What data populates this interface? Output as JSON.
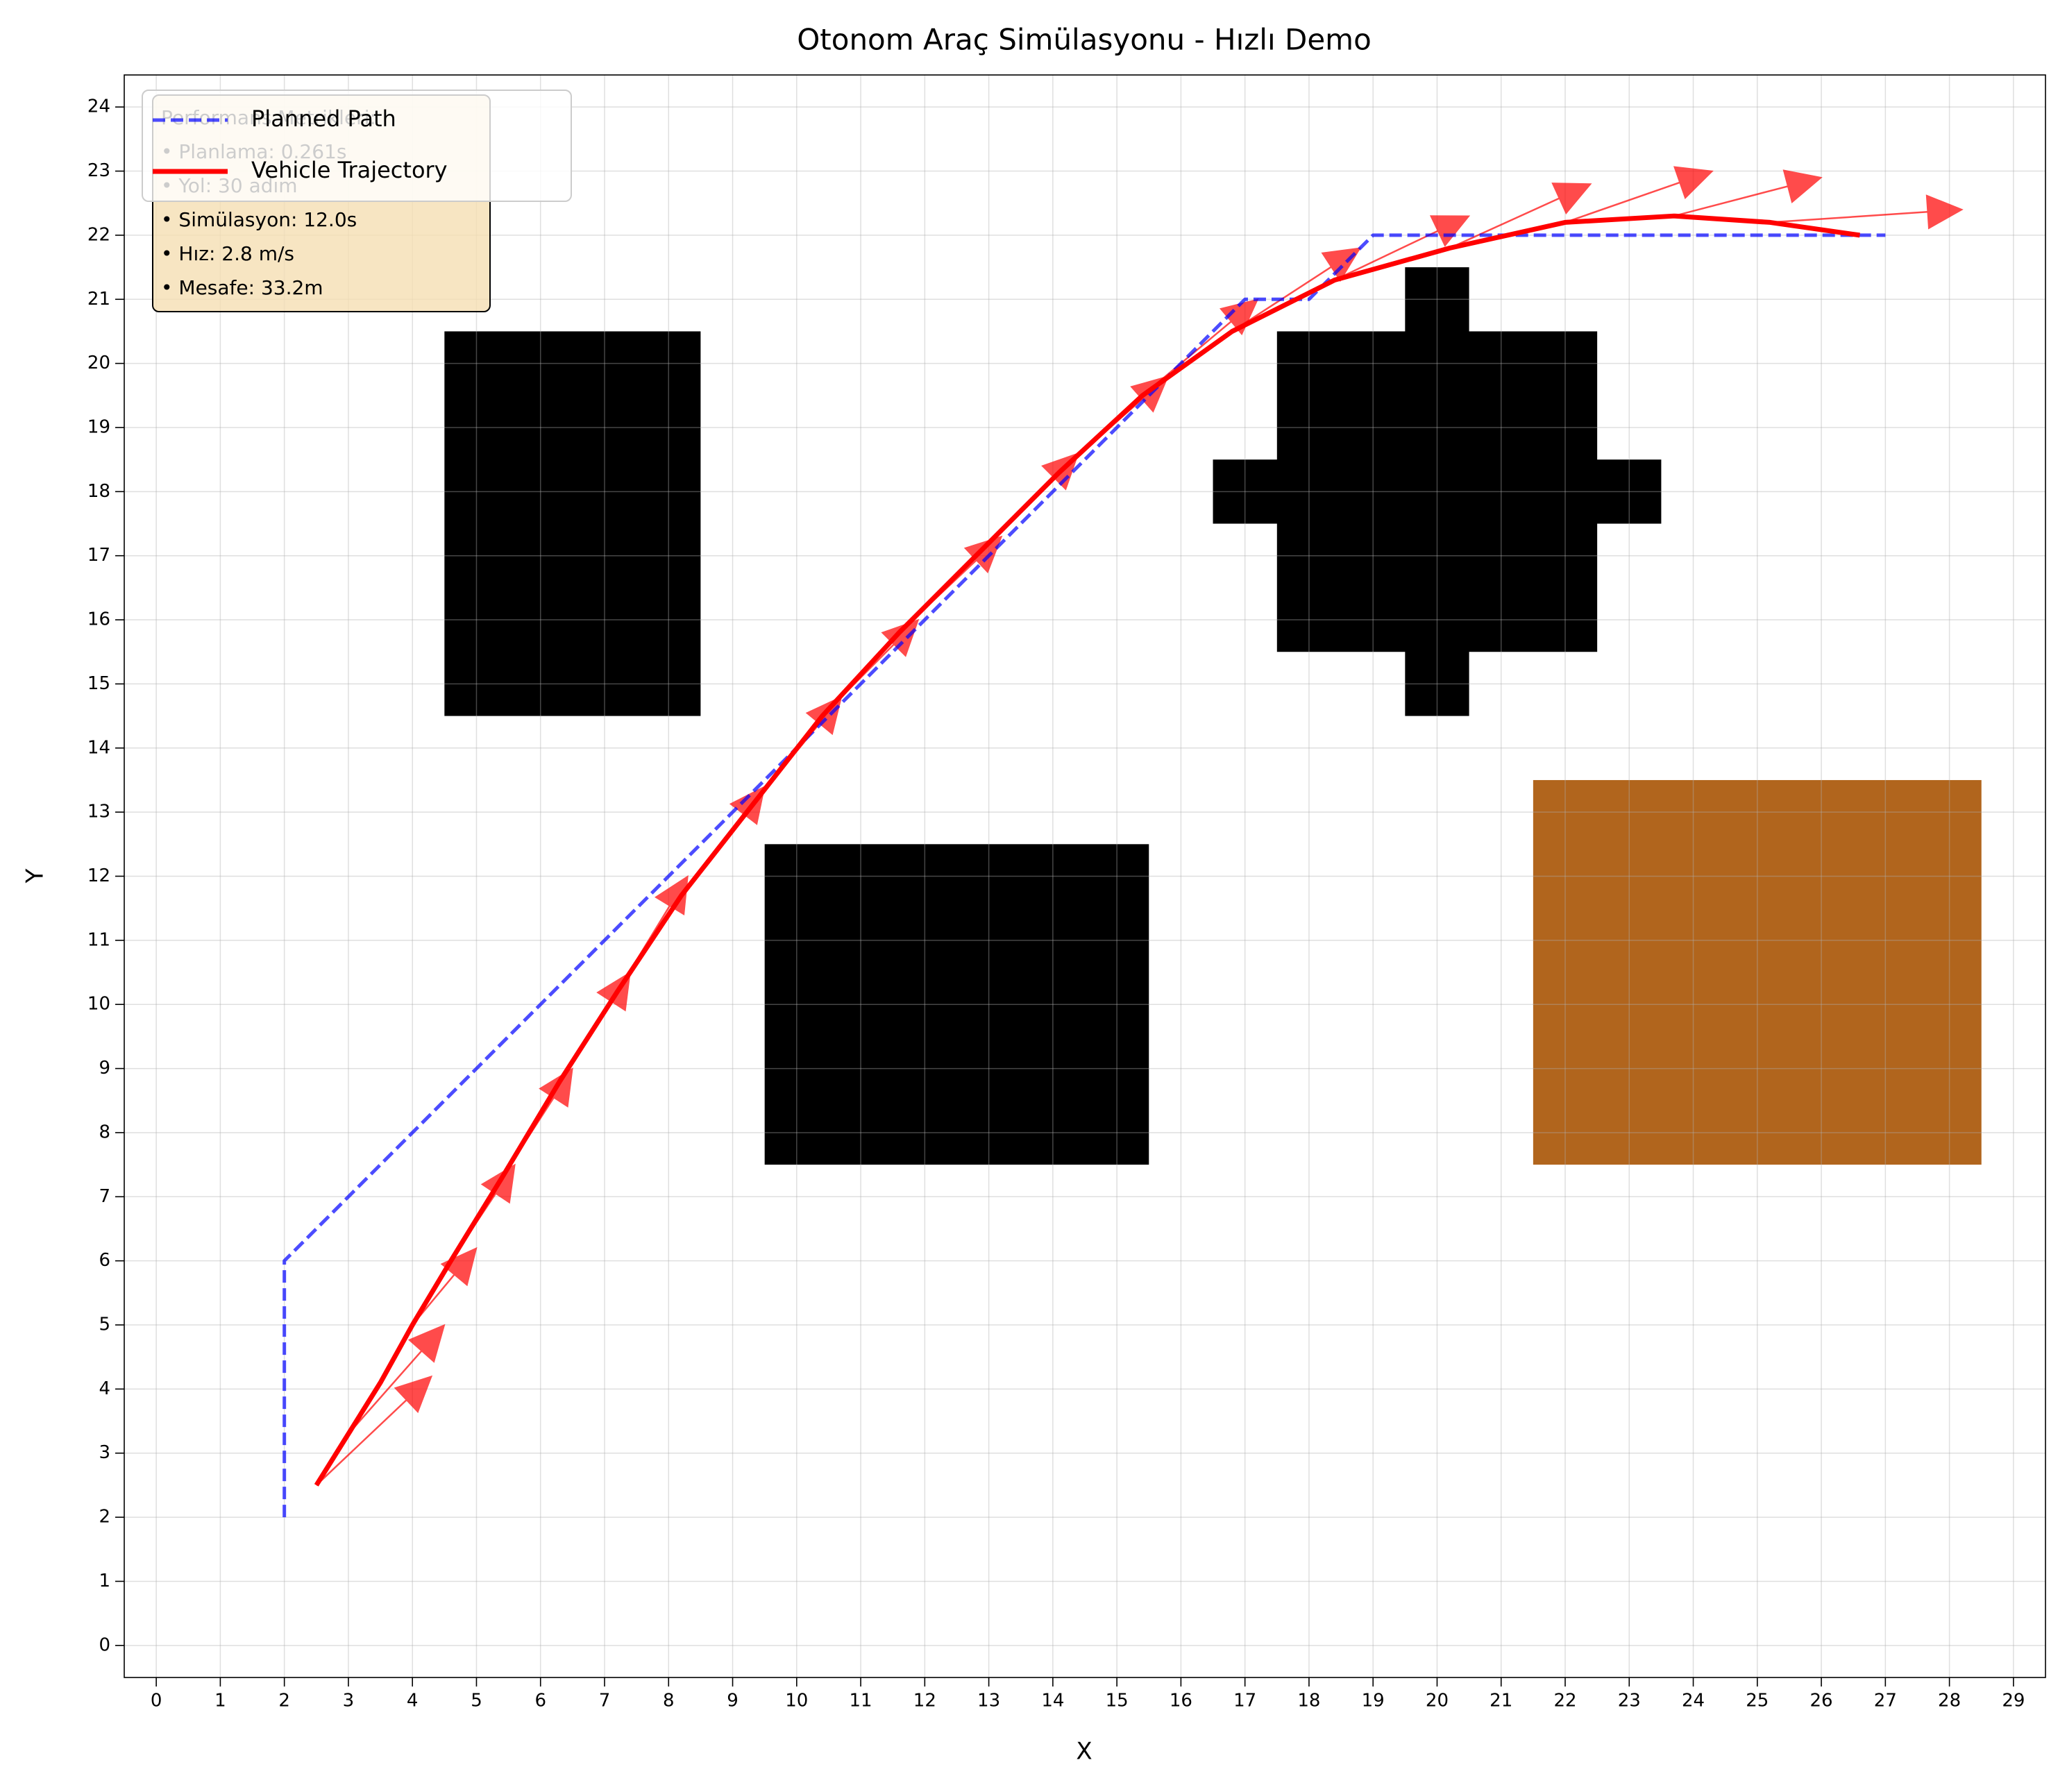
{
  "chart_data": {
    "type": "simulation",
    "title": "Otonom Araç Simülasyonu - Hızlı Demo",
    "xlabel": "X",
    "ylabel": "Y",
    "xlim": [
      -0.5,
      29.5
    ],
    "ylim": [
      -0.5,
      24.5
    ],
    "xticks": [
      0,
      1,
      2,
      3,
      4,
      5,
      6,
      7,
      8,
      9,
      10,
      11,
      12,
      13,
      14,
      15,
      16,
      17,
      18,
      19,
      20,
      21,
      22,
      23,
      24,
      25,
      26,
      27,
      28,
      29
    ],
    "yticks": [
      0,
      1,
      2,
      3,
      4,
      5,
      6,
      7,
      8,
      9,
      10,
      11,
      12,
      13,
      14,
      15,
      16,
      17,
      18,
      19,
      20,
      21,
      22,
      23,
      24
    ],
    "grid": true,
    "legend": "upper left",
    "obstacles": [
      {
        "x0": 4.5,
        "x1": 8.5,
        "y0": 14.5,
        "y1": 20.5,
        "color": "#000000"
      },
      {
        "x0": 9.5,
        "x1": 15.5,
        "y0": 7.5,
        "y1": 12.5,
        "color": "#000000"
      },
      {
        "x0": 17.5,
        "x1": 22.5,
        "y0": 15.5,
        "y1": 20.5,
        "color": "#000000"
      },
      {
        "x0": 16.5,
        "x1": 23.5,
        "y0": 17.5,
        "y1": 18.5,
        "color": "#000000"
      },
      {
        "x0": 19.5,
        "x1": 20.5,
        "y0": 14.5,
        "y1": 21.5,
        "color": "#000000"
      },
      {
        "x0": 21.5,
        "x1": 28.5,
        "y0": 7.5,
        "y1": 13.5,
        "color": "#b1651d"
      }
    ],
    "series": [
      {
        "name": "Planned Path",
        "color": "#0000ff",
        "style": "dashed",
        "x": [
          2,
          2,
          2,
          2,
          2,
          3,
          4,
          5,
          6,
          7,
          8,
          9,
          10,
          11,
          12,
          13,
          14,
          15,
          16,
          17,
          18,
          19,
          20,
          21,
          22,
          23,
          24,
          25,
          26,
          27
        ],
        "y": [
          2,
          3,
          4,
          5,
          6,
          7,
          8,
          9,
          10,
          11,
          12,
          13,
          14,
          15,
          16,
          17,
          18,
          19,
          20,
          21,
          21,
          22,
          22,
          22,
          22,
          22,
          22,
          22,
          22,
          22
        ]
      },
      {
        "name": "Vehicle Trajectory",
        "color": "#ff0000",
        "style": "solid",
        "x": [
          2.5,
          3,
          3.5,
          4,
          4.6,
          5.4,
          6.3,
          7.2,
          8.2,
          9.3,
          10.4,
          11.6,
          12.9,
          14.1,
          15.4,
          16.8,
          18.4,
          20.2,
          22,
          23.7,
          25.2,
          26.6
        ],
        "y": [
          2.5,
          3.3,
          4.1,
          5,
          6,
          7.3,
          8.8,
          10.2,
          11.7,
          13.1,
          14.5,
          15.8,
          17.1,
          18.3,
          19.5,
          20.5,
          21.3,
          21.8,
          22.2,
          22.3,
          22.2,
          22
        ]
      }
    ],
    "arrows": {
      "color": "#ff0000",
      "x_start": [
        2.5,
        3,
        4,
        4.6,
        5.4,
        6.3,
        7.2,
        8.2,
        9.3,
        10.4,
        11.6,
        12.9,
        14.1,
        15.4,
        16.8,
        18.4,
        20.2,
        22,
        23.7,
        25.2
      ],
      "y_start": [
        2.5,
        3.3,
        5,
        6,
        7.3,
        8.8,
        10.2,
        11.7,
        13.1,
        14.5,
        15.8,
        17.1,
        18.3,
        19.5,
        20.5,
        21.3,
        21.8,
        22.2,
        22.3,
        22.2
      ],
      "x_end": [
        4.3,
        4.5,
        5,
        5.6,
        6.5,
        7.4,
        8.3,
        9.5,
        10.7,
        11.9,
        13.2,
        14.4,
        15.8,
        17.2,
        18.8,
        20.5,
        22.4,
        24.3,
        26,
        28.2
      ],
      "y_end": [
        4.2,
        5,
        6.2,
        7.5,
        9,
        10.5,
        12,
        13.4,
        14.8,
        16,
        17.3,
        18.6,
        19.8,
        21,
        21.8,
        22.3,
        22.8,
        23,
        22.9,
        22.4
      ]
    },
    "text_box": {
      "lines": [
        "Performans Metrikleri:",
        "• Planlama: 0.261s",
        "• Yol: 30 adım",
        "• Simülasyon: 12.0s",
        "• Hız: 2.8 m/s",
        "• Mesafe: 33.2m"
      ]
    }
  }
}
